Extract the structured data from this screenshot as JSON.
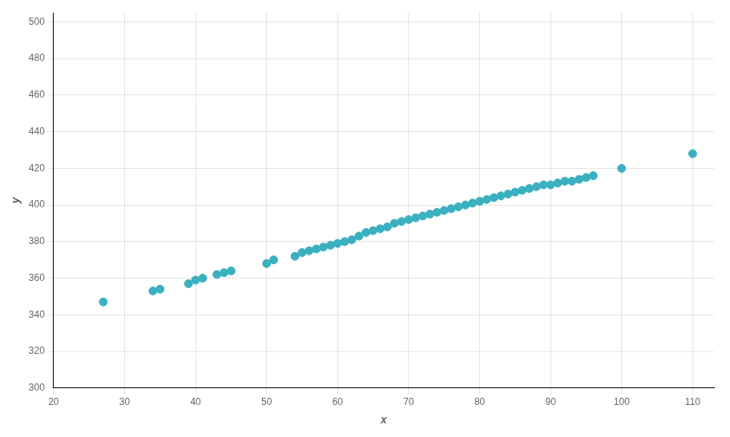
{
  "chart_data": {
    "type": "scatter",
    "x": [
      27,
      34,
      35,
      39,
      40,
      41,
      43,
      44,
      45,
      50,
      51,
      54,
      55,
      56,
      57,
      58,
      59,
      60,
      61,
      62,
      63,
      64,
      65,
      66,
      67,
      68,
      69,
      70,
      71,
      72,
      73,
      74,
      75,
      76,
      77,
      78,
      79,
      80,
      81,
      82,
      83,
      84,
      85,
      86,
      87,
      88,
      89,
      90,
      91,
      92,
      93,
      94,
      95,
      96,
      100,
      110
    ],
    "values": [
      347,
      353,
      354,
      357,
      359,
      360,
      362,
      363,
      364,
      368,
      370,
      372,
      374,
      375,
      376,
      377,
      378,
      379,
      380,
      381,
      383,
      385,
      386,
      387,
      388,
      390,
      391,
      392,
      393,
      394,
      395,
      396,
      397,
      398,
      399,
      400,
      401,
      402,
      403,
      404,
      405,
      406,
      407,
      408,
      409,
      410,
      411,
      411,
      412,
      413,
      413,
      414,
      415,
      416,
      420,
      428
    ],
    "color": "#3ab0c0",
    "xlabel": "x",
    "ylabel": "y",
    "xlim": [
      20,
      113
    ],
    "ylim": [
      300,
      505
    ],
    "xticks": [
      20,
      30,
      40,
      50,
      60,
      70,
      80,
      90,
      100,
      110
    ],
    "yticks": [
      300,
      320,
      340,
      360,
      380,
      400,
      420,
      440,
      460,
      480,
      500
    ],
    "grid": true
  }
}
